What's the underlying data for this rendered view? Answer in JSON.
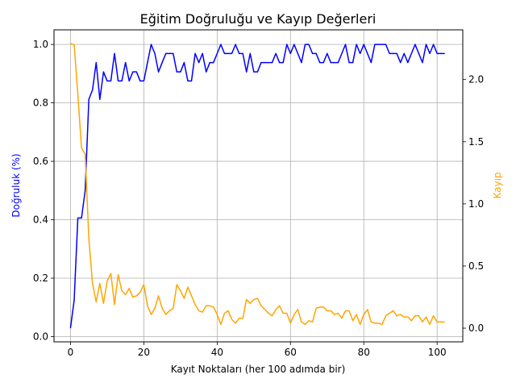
{
  "chart_data": {
    "type": "line",
    "title": "Eğitim Doğruluğu ve Kayıp Değerleri",
    "xlabel": "Kayıt Noktaları (her 100 adımda bir)",
    "ylabel_left": "Doğruluk (%)",
    "ylabel_right": "Kayıp",
    "xlim": [
      -4.5,
      107
    ],
    "ylim_left": [
      -0.018,
      1.05
    ],
    "ylim_right": [
      -0.11,
      2.4
    ],
    "xticks": [
      0,
      20,
      40,
      60,
      80,
      100
    ],
    "yticks_left": [
      0.0,
      0.2,
      0.4,
      0.6,
      0.8,
      1.0
    ],
    "yticks_right": [
      0.0,
      0.5,
      1.0,
      1.5,
      2.0
    ],
    "grid": true,
    "series": [
      {
        "axis": "left",
        "color": "#0000ff",
        "x": [
          0,
          1,
          2,
          3,
          4,
          5,
          6,
          7,
          8,
          9,
          10,
          11,
          12,
          13,
          14,
          15,
          16,
          17,
          18,
          19,
          20,
          21,
          22,
          23,
          24,
          25,
          26,
          27,
          28,
          29,
          30,
          31,
          32,
          33,
          34,
          35,
          36,
          37,
          38,
          39,
          40,
          41,
          42,
          43,
          44,
          45,
          46,
          47,
          48,
          49,
          50,
          51,
          52,
          53,
          54,
          55,
          56,
          57,
          58,
          59,
          60,
          61,
          62,
          63,
          64,
          65,
          66,
          67,
          68,
          69,
          70,
          71,
          72,
          73,
          74,
          75,
          76,
          77,
          78,
          79,
          80,
          81,
          82,
          83,
          84,
          85,
          86,
          87,
          88,
          89,
          90,
          91,
          92,
          93,
          94,
          95,
          96,
          97,
          98,
          99,
          100,
          101,
          102
        ],
        "values": [
          0.03,
          0.125,
          0.406,
          0.406,
          0.5,
          0.812,
          0.844,
          0.938,
          0.812,
          0.906,
          0.875,
          0.875,
          0.969,
          0.875,
          0.875,
          0.938,
          0.875,
          0.906,
          0.906,
          0.875,
          0.875,
          0.938,
          1.0,
          0.969,
          0.906,
          0.938,
          0.969,
          0.969,
          0.969,
          0.906,
          0.906,
          0.938,
          0.875,
          0.875,
          0.969,
          0.938,
          0.969,
          0.906,
          0.938,
          0.938,
          0.969,
          1.0,
          0.969,
          0.969,
          0.969,
          1.0,
          0.969,
          0.969,
          0.906,
          0.969,
          0.906,
          0.906,
          0.938,
          0.938,
          0.938,
          0.938,
          0.969,
          0.938,
          0.938,
          1.0,
          0.969,
          1.0,
          0.969,
          0.938,
          1.0,
          1.0,
          0.969,
          0.969,
          0.938,
          0.938,
          0.969,
          0.938,
          0.938,
          0.938,
          0.969,
          1.0,
          0.938,
          0.938,
          1.0,
          0.969,
          1.0,
          0.969,
          0.938,
          1.0,
          1.0,
          1.0,
          1.0,
          0.969,
          0.969,
          0.969,
          0.938,
          0.969,
          0.938,
          0.969,
          1.0,
          0.969,
          0.938,
          1.0,
          0.969,
          1.0,
          0.969,
          0.969,
          0.969
        ]
      },
      {
        "axis": "right",
        "color": "#ffa500",
        "x": [
          0,
          1,
          2,
          3,
          4,
          5,
          6,
          7,
          8,
          9,
          10,
          11,
          12,
          13,
          14,
          15,
          16,
          17,
          18,
          19,
          20,
          21,
          22,
          23,
          24,
          25,
          26,
          27,
          28,
          29,
          30,
          31,
          32,
          33,
          34,
          35,
          36,
          37,
          38,
          39,
          40,
          41,
          42,
          43,
          44,
          45,
          46,
          47,
          48,
          49,
          50,
          51,
          52,
          53,
          54,
          55,
          56,
          57,
          58,
          59,
          60,
          61,
          62,
          63,
          64,
          65,
          66,
          67,
          68,
          69,
          70,
          71,
          72,
          73,
          74,
          75,
          76,
          77,
          78,
          79,
          80,
          81,
          82,
          83,
          84,
          85,
          86,
          87,
          88,
          89,
          90,
          91,
          92,
          93,
          94,
          95,
          96,
          97,
          98,
          99,
          100,
          101,
          102
        ],
        "values": [
          2.29,
          2.28,
          1.88,
          1.45,
          1.4,
          0.72,
          0.36,
          0.21,
          0.36,
          0.2,
          0.38,
          0.44,
          0.19,
          0.43,
          0.3,
          0.27,
          0.32,
          0.25,
          0.26,
          0.29,
          0.35,
          0.18,
          0.11,
          0.16,
          0.26,
          0.16,
          0.11,
          0.14,
          0.16,
          0.35,
          0.3,
          0.24,
          0.33,
          0.26,
          0.19,
          0.14,
          0.13,
          0.18,
          0.18,
          0.17,
          0.11,
          0.03,
          0.12,
          0.14,
          0.07,
          0.04,
          0.08,
          0.08,
          0.23,
          0.2,
          0.23,
          0.24,
          0.18,
          0.15,
          0.12,
          0.1,
          0.15,
          0.18,
          0.12,
          0.12,
          0.04,
          0.11,
          0.15,
          0.05,
          0.03,
          0.06,
          0.05,
          0.16,
          0.17,
          0.17,
          0.14,
          0.14,
          0.11,
          0.12,
          0.08,
          0.14,
          0.14,
          0.06,
          0.11,
          0.03,
          0.11,
          0.15,
          0.05,
          0.04,
          0.04,
          0.03,
          0.1,
          0.12,
          0.14,
          0.1,
          0.11,
          0.09,
          0.09,
          0.06,
          0.1,
          0.1,
          0.05,
          0.09,
          0.03,
          0.1,
          0.05,
          0.05,
          0.05
        ]
      }
    ]
  }
}
